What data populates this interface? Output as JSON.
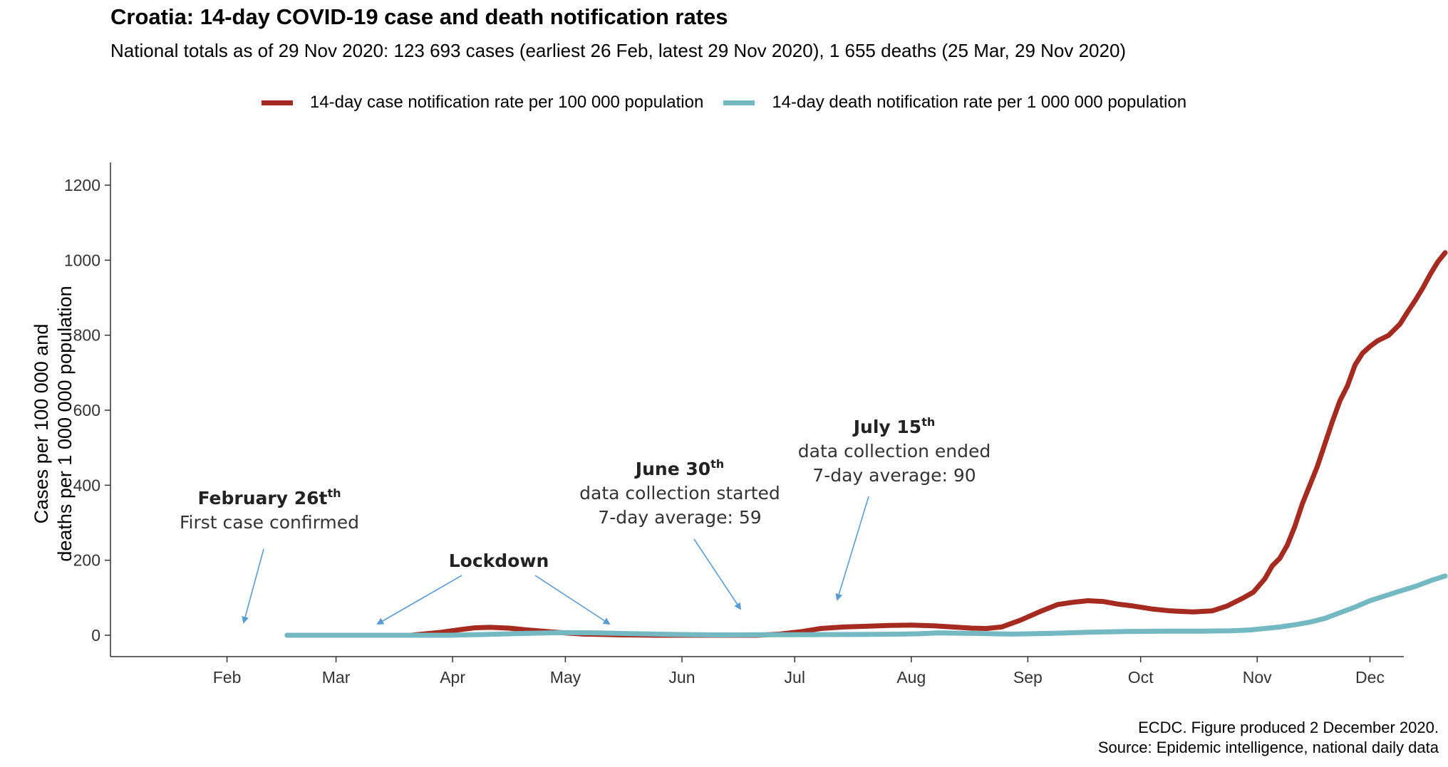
{
  "chart_data": {
    "type": "line",
    "title": "Croatia: 14-day COVID-19 case and death notification rates",
    "subtitle": "National totals as of 29 Nov 2020: 123 693 cases (earliest 26 Feb, latest 29 Nov 2020), 1 655 deaths (25 Mar, 29 Nov 2020)",
    "ylabel": [
      "Cases per 100 000 and",
      "deaths per 1 000 000 population"
    ],
    "xlabel": "",
    "ylim": [
      0,
      1260
    ],
    "yticks": [
      0,
      200,
      400,
      600,
      800,
      1000,
      1200
    ],
    "xlim_day": [
      0,
      344
    ],
    "xticks": [
      {
        "label": "Feb",
        "day": 31
      },
      {
        "label": "Mar",
        "day": 60
      },
      {
        "label": "Apr",
        "day": 91
      },
      {
        "label": "May",
        "day": 121
      },
      {
        "label": "Jun",
        "day": 152
      },
      {
        "label": "Jul",
        "day": 182
      },
      {
        "label": "Aug",
        "day": 213
      },
      {
        "label": "Sep",
        "day": 244
      },
      {
        "label": "Oct",
        "day": 274
      },
      {
        "label": "Nov",
        "day": 305
      },
      {
        "label": "Dec",
        "day": 335
      }
    ],
    "x_unit": "day of year 2020 (0 = 1 Jan)",
    "grid": false,
    "legend_position": "top",
    "series": [
      {
        "name": "14-day case notification rate per 100 000 population",
        "color": "#A52A1F",
        "points": [
          [
            47,
            0
          ],
          [
            80,
            0
          ],
          [
            83,
            3
          ],
          [
            88,
            8
          ],
          [
            93,
            15
          ],
          [
            97,
            20
          ],
          [
            101,
            21
          ],
          [
            106,
            19
          ],
          [
            111,
            14
          ],
          [
            116,
            10
          ],
          [
            121,
            6
          ],
          [
            126,
            3
          ],
          [
            131,
            2
          ],
          [
            136,
            1
          ],
          [
            145,
            0
          ],
          [
            172,
            0
          ],
          [
            178,
            3
          ],
          [
            184,
            10
          ],
          [
            189,
            18
          ],
          [
            195,
            22
          ],
          [
            201,
            24
          ],
          [
            207,
            26
          ],
          [
            213,
            27
          ],
          [
            219,
            25
          ],
          [
            224,
            22
          ],
          [
            229,
            19
          ],
          [
            233,
            18
          ],
          [
            237,
            22
          ],
          [
            242,
            40
          ],
          [
            247,
            62
          ],
          [
            252,
            82
          ],
          [
            256,
            88
          ],
          [
            260,
            92
          ],
          [
            264,
            90
          ],
          [
            268,
            83
          ],
          [
            272,
            78
          ],
          [
            277,
            70
          ],
          [
            282,
            65
          ],
          [
            288,
            62
          ],
          [
            293,
            65
          ],
          [
            297,
            78
          ],
          [
            301,
            98
          ],
          [
            304,
            115
          ],
          [
            307,
            150
          ],
          [
            309,
            185
          ],
          [
            311,
            205
          ],
          [
            313,
            240
          ],
          [
            315,
            290
          ],
          [
            317,
            350
          ],
          [
            319,
            400
          ],
          [
            321,
            450
          ],
          [
            323,
            510
          ],
          [
            325,
            570
          ],
          [
            327,
            625
          ],
          [
            329,
            665
          ],
          [
            331,
            720
          ],
          [
            333,
            752
          ],
          [
            335,
            770
          ],
          [
            337,
            785
          ],
          [
            340,
            800
          ],
          [
            343,
            830
          ],
          [
            345,
            862
          ],
          [
            347,
            892
          ],
          [
            349,
            925
          ],
          [
            351,
            962
          ],
          [
            353,
            995
          ],
          [
            355,
            1020
          ]
        ]
      },
      {
        "name": "14-day death notification rate per 1 000 000 population",
        "color": "#74B8C2",
        "points": [
          [
            47,
            0
          ],
          [
            90,
            0
          ],
          [
            100,
            2
          ],
          [
            110,
            5
          ],
          [
            120,
            7
          ],
          [
            130,
            6
          ],
          [
            140,
            4
          ],
          [
            150,
            2
          ],
          [
            160,
            1
          ],
          [
            200,
            2
          ],
          [
            210,
            3
          ],
          [
            215,
            4
          ],
          [
            220,
            6
          ],
          [
            230,
            5
          ],
          [
            240,
            3
          ],
          [
            250,
            5
          ],
          [
            260,
            8
          ],
          [
            270,
            10
          ],
          [
            280,
            11
          ],
          [
            290,
            11
          ],
          [
            298,
            12
          ],
          [
            303,
            14
          ],
          [
            307,
            18
          ],
          [
            311,
            22
          ],
          [
            315,
            28
          ],
          [
            319,
            35
          ],
          [
            323,
            45
          ],
          [
            327,
            60
          ],
          [
            331,
            75
          ],
          [
            335,
            92
          ],
          [
            339,
            105
          ],
          [
            343,
            118
          ],
          [
            347,
            130
          ],
          [
            351,
            145
          ],
          [
            355,
            158
          ]
        ]
      }
    ],
    "annotations": [
      {
        "date": "February 26t",
        "sup": "th",
        "text": [
          "First case confirmed"
        ]
      },
      {
        "date": "Lockdown",
        "sup": "",
        "text": []
      },
      {
        "date": "June 30",
        "sup": "th",
        "text": [
          "data collection started",
          "7-day average: 59"
        ]
      },
      {
        "date": "July 15",
        "sup": "th",
        "text": [
          "data collection ended",
          "7-day average: 90"
        ]
      }
    ]
  },
  "caption": {
    "line1": "ECDC. Figure produced 2 December 2020.",
    "line2": "Source: Epidemic intelligence, national daily data"
  },
  "colors": {
    "axis": "#333333",
    "arrow": "#5B9BD5"
  }
}
